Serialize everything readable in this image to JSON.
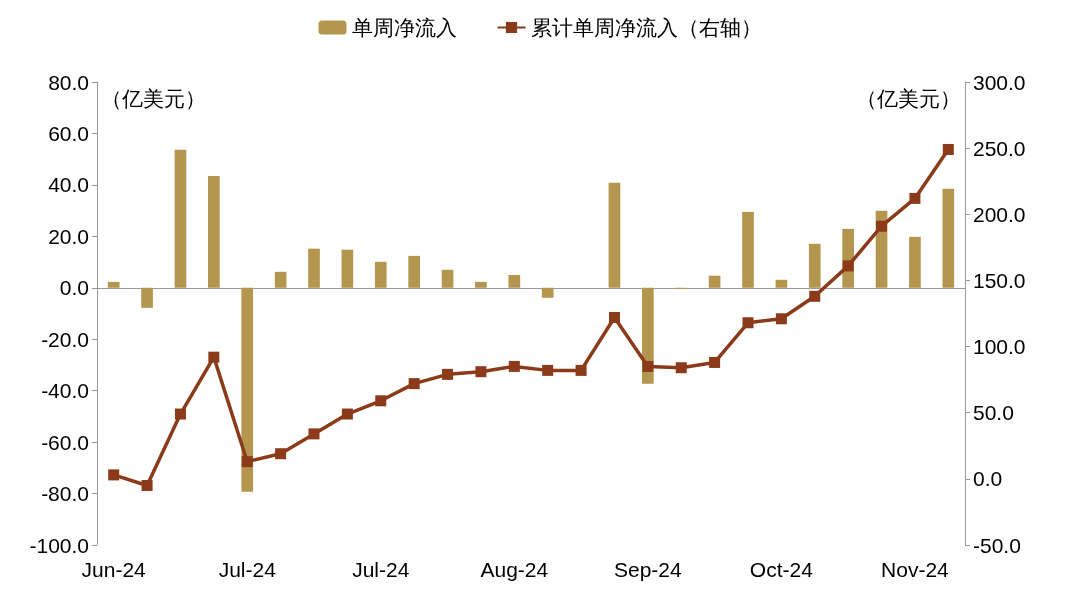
{
  "chart_data": {
    "type": "bar",
    "categories": [
      "Jun-24",
      null,
      null,
      null,
      "Jul-24",
      null,
      null,
      null,
      "Jul-24",
      null,
      null,
      null,
      "Aug-24",
      null,
      null,
      null,
      "Sep-24",
      null,
      null,
      null,
      "Oct-24",
      null,
      null,
      null,
      "Nov-24",
      null
    ],
    "series": [
      {
        "name": "单周净流入",
        "color": "#b5964f",
        "values": [
          2.3,
          -7.8,
          53.7,
          43.5,
          -79.3,
          6.2,
          15.2,
          14.8,
          10.1,
          12.4,
          7.0,
          2.3,
          5.0,
          -3.9,
          0,
          40.8,
          -37.3,
          -0.4,
          4.7,
          29.5,
          3.1,
          17.1,
          22.9,
          29.9,
          19.8,
          38.5
        ]
      },
      {
        "name": "累计单周净流入（右轴）",
        "type": "line",
        "axis": "y2",
        "color": "#8b3a1a",
        "marker": "square",
        "values": [
          3,
          -5,
          49,
          92,
          13,
          19,
          34,
          49,
          59,
          72,
          79,
          81,
          85,
          82,
          82,
          122,
          85,
          84,
          88,
          118,
          121,
          138,
          161,
          191,
          212,
          249
        ]
      }
    ],
    "ylabel": "（亿美元）",
    "y2label": "（亿美元）",
    "ylim": [
      -100,
      80
    ],
    "yticks": [
      {
        "value": -100,
        "label": "-100.0"
      },
      {
        "value": -80,
        "label": "-80.0"
      },
      {
        "value": -60,
        "label": "-60.0"
      },
      {
        "value": -40,
        "label": "-40.0"
      },
      {
        "value": -20,
        "label": "-20.0"
      },
      {
        "value": 0,
        "label": "0.0"
      },
      {
        "value": 20,
        "label": "20.0"
      },
      {
        "value": 40,
        "label": "40.0"
      },
      {
        "value": 60,
        "label": "60.0"
      },
      {
        "value": 80,
        "label": "80.0"
      }
    ],
    "y2lim": [
      -50,
      300
    ],
    "y2ticks": [
      {
        "value": -50,
        "label": "-50.0"
      },
      {
        "value": 0,
        "label": "0.0"
      },
      {
        "value": 50,
        "label": "50.0"
      },
      {
        "value": 100,
        "label": "100.0"
      },
      {
        "value": 150,
        "label": "150.0"
      },
      {
        "value": 200,
        "label": "200.0"
      },
      {
        "value": 250,
        "label": "250.0"
      },
      {
        "value": 300,
        "label": "300.0"
      }
    ],
    "legend": "top"
  }
}
